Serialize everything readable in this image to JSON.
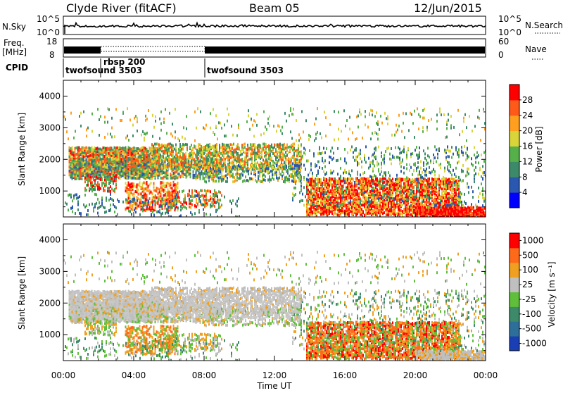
{
  "header": {
    "station": "Clyde River (fitACF)",
    "beam": "Beam 05",
    "date": "12/Jun/2015"
  },
  "strip_labels": {
    "nsky": "N.Sky",
    "nsky_ticks": [
      "10^5",
      "10^0"
    ],
    "nsearch": "N.Search",
    "nsearch_ticks": [
      "10^5",
      "10^0"
    ],
    "freq": "Freq.",
    "freq_unit": "[MHz]",
    "freq_ticks": [
      "18",
      "8"
    ],
    "nave": "Nave",
    "nave_ticks": [
      "60",
      "0"
    ],
    "cpid": "CPID"
  },
  "cpid_segments": [
    {
      "label": "twofsound 3503",
      "start_hour": 0.0
    },
    {
      "label": "rbsp 200",
      "start_hour": 1.8
    },
    {
      "label": "twofsound 3503",
      "start_hour": 8.0
    }
  ],
  "x_axis": {
    "title": "Time UT",
    "ticks": [
      "00:00",
      "04:00",
      "08:00",
      "12:00",
      "16:00",
      "20:00",
      "00:00"
    ],
    "range_hours": [
      0,
      24
    ]
  },
  "chart_data": [
    {
      "type": "heatmap",
      "name": "power",
      "ylabel": "Slant Range [km]",
      "yticks": [
        1000,
        2000,
        3000,
        4000
      ],
      "ylim": [
        180,
        4500
      ],
      "colorbar": {
        "label": "Power [dB]",
        "ticks": [
          "4",
          "8",
          "12",
          "16",
          "20",
          "24",
          "28"
        ],
        "colors": [
          "#0000ff",
          "#2a58b0",
          "#3d8a6a",
          "#56b04a",
          "#d9d43a",
          "#ff9e1f",
          "#ff5a1a",
          "#ff0000"
        ]
      }
    },
    {
      "type": "heatmap",
      "name": "velocity",
      "ylabel": "Slant Range [km]",
      "yticks": [
        1000,
        2000,
        3000,
        4000
      ],
      "ylim": [
        180,
        4500
      ],
      "colorbar": {
        "label": "Velocity [m s⁻¹]",
        "ticks": [
          "1000",
          "500",
          "100",
          "25",
          "-25",
          "-100",
          "-500",
          "-1000"
        ],
        "colors": [
          "#1a3fb5",
          "#2d6f98",
          "#3d8a6a",
          "#5fbf3a",
          "#bfbfbf",
          "#f0a020",
          "#ff6a1a",
          "#ff0000"
        ]
      }
    }
  ]
}
